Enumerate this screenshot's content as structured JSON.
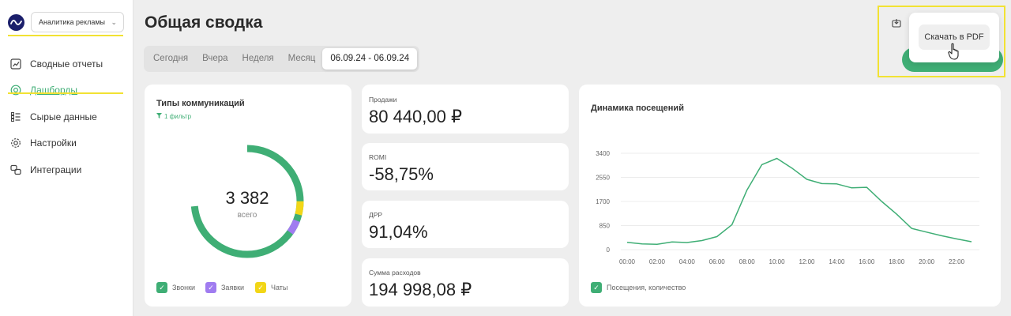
{
  "sidebar": {
    "org_select": "Аналитика рекламы",
    "items": [
      {
        "label": "Сводные отчеты",
        "icon": "chart-report-icon",
        "active": false
      },
      {
        "label": "Дашборды",
        "icon": "dashboard-icon",
        "active": true
      },
      {
        "label": "Сырые данные",
        "icon": "raw-data-icon",
        "active": false
      },
      {
        "label": "Настройки",
        "icon": "gear-icon",
        "active": false
      },
      {
        "label": "Интеграции",
        "icon": "integration-icon",
        "active": false
      }
    ]
  },
  "header": {
    "title": "Общая сводка",
    "periods": [
      "Сегодня",
      "Вчера",
      "Неделя",
      "Месяц"
    ],
    "selected_range": "06.09.24 - 06.09.24"
  },
  "download": {
    "pdf_label": "Скачать в PDF"
  },
  "comm_card": {
    "title": "Типы коммуникаций",
    "filter": "1 фильтр",
    "total": "3 382",
    "total_label": "всего",
    "legend": [
      {
        "label": "Звонки",
        "color": "#3fae75"
      },
      {
        "label": "Заявки",
        "color": "#a07cf0"
      },
      {
        "label": "Чаты",
        "color": "#f2d617"
      }
    ]
  },
  "kpis": [
    {
      "label": "Продажи",
      "value": "80 440,00 ₽"
    },
    {
      "label": "ROMI",
      "value": "-58,75%"
    },
    {
      "label": "ДРР",
      "value": "91,04%"
    },
    {
      "label": "Сумма расходов",
      "value": "194 998,08 ₽"
    }
  ],
  "chart_data": {
    "type": "line",
    "title": "Динамика посещений",
    "x": [
      "00:00",
      "01:00",
      "02:00",
      "03:00",
      "04:00",
      "05:00",
      "06:00",
      "07:00",
      "08:00",
      "09:00",
      "10:00",
      "11:00",
      "12:00",
      "13:00",
      "14:00",
      "15:00",
      "16:00",
      "17:00",
      "18:00",
      "19:00",
      "20:00",
      "21:00",
      "22:00",
      "23:00"
    ],
    "x_tick_labels": [
      "00:00",
      "02:00",
      "04:00",
      "06:00",
      "08:00",
      "10:00",
      "12:00",
      "14:00",
      "16:00",
      "18:00",
      "20:00",
      "22:00"
    ],
    "y_ticks": [
      "3400",
      "2550",
      "1700",
      "850",
      "0"
    ],
    "series": [
      {
        "name": "Посещения, количество",
        "color": "#3fae75",
        "values": [
          260,
          200,
          190,
          270,
          250,
          320,
          460,
          880,
          2100,
          3000,
          3220,
          2880,
          2480,
          2330,
          2320,
          2180,
          2200,
          1700,
          1250,
          750,
          620,
          490,
          380,
          280
        ]
      }
    ],
    "ylim": [
      0,
      3400
    ],
    "legend": "bottom-left",
    "grid": true
  }
}
